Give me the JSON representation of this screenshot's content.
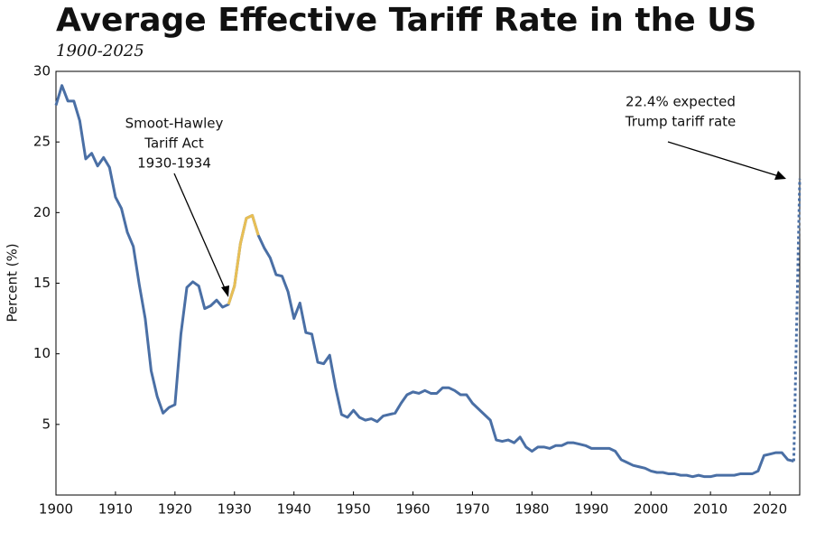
{
  "chart_data": {
    "type": "line",
    "title": "Average Effective Tariff Rate in the US",
    "subtitle": "1900-2025",
    "y_label": "Percent (%)",
    "x": [
      1900,
      1901,
      1902,
      1903,
      1904,
      1905,
      1906,
      1907,
      1908,
      1909,
      1910,
      1911,
      1912,
      1913,
      1914,
      1915,
      1916,
      1917,
      1918,
      1919,
      1920,
      1921,
      1922,
      1923,
      1924,
      1925,
      1926,
      1927,
      1928,
      1929,
      1930,
      1931,
      1932,
      1933,
      1934,
      1935,
      1936,
      1937,
      1938,
      1939,
      1940,
      1941,
      1942,
      1943,
      1944,
      1945,
      1946,
      1947,
      1948,
      1949,
      1950,
      1951,
      1952,
      1953,
      1954,
      1955,
      1956,
      1957,
      1958,
      1959,
      1960,
      1961,
      1962,
      1963,
      1964,
      1965,
      1966,
      1967,
      1968,
      1969,
      1970,
      1971,
      1972,
      1973,
      1974,
      1975,
      1976,
      1977,
      1978,
      1979,
      1980,
      1981,
      1982,
      1983,
      1984,
      1985,
      1986,
      1987,
      1988,
      1989,
      1990,
      1991,
      1992,
      1993,
      1994,
      1995,
      1996,
      1997,
      1998,
      1999,
      2000,
      2001,
      2002,
      2003,
      2004,
      2005,
      2006,
      2007,
      2008,
      2009,
      2010,
      2011,
      2012,
      2013,
      2014,
      2015,
      2016,
      2017,
      2018,
      2019,
      2020,
      2021,
      2022,
      2023,
      2024
    ],
    "series": [
      {
        "color": "#4a6fa5",
        "values": [
          27.6,
          29.0,
          27.9,
          27.9,
          26.5,
          23.8,
          24.2,
          23.3,
          23.9,
          23.2,
          21.1,
          20.3,
          18.6,
          17.6,
          14.9,
          12.5,
          8.8,
          7.0,
          5.8,
          6.2,
          6.4,
          11.4,
          14.7,
          15.1,
          14.8,
          13.2,
          13.4,
          13.8,
          13.3,
          13.5,
          14.8,
          17.8,
          19.6,
          19.8,
          18.4,
          17.5,
          16.8,
          15.6,
          15.5,
          14.4,
          12.5,
          13.6,
          11.5,
          11.4,
          9.4,
          9.3,
          9.9,
          7.6,
          5.7,
          5.5,
          6.0,
          5.5,
          5.3,
          5.4,
          5.2,
          5.6,
          5.7,
          5.8,
          6.5,
          7.1,
          7.3,
          7.2,
          7.4,
          7.2,
          7.2,
          7.6,
          7.6,
          7.4,
          7.1,
          7.1,
          6.5,
          6.1,
          5.7,
          5.3,
          3.9,
          3.8,
          3.9,
          3.7,
          4.1,
          3.4,
          3.1,
          3.4,
          3.4,
          3.3,
          3.5,
          3.5,
          3.7,
          3.7,
          3.6,
          3.5,
          3.3,
          3.3,
          3.3,
          3.3,
          3.1,
          2.5,
          2.3,
          2.1,
          2.0,
          1.9,
          1.7,
          1.6,
          1.6,
          1.5,
          1.5,
          1.4,
          1.4,
          1.3,
          1.4,
          1.3,
          1.3,
          1.4,
          1.4,
          1.4,
          1.4,
          1.5,
          1.5,
          1.5,
          1.7,
          2.8,
          2.9,
          3.0,
          3.0,
          2.5,
          2.4
        ]
      }
    ],
    "highlight": {
      "x_range": [
        1929,
        1934
      ],
      "color": "#e8bf55"
    },
    "projection": {
      "x": 2025,
      "value": 22.4,
      "style": "dotted"
    },
    "annotations": [
      {
        "lines": [
          "Smoot-Hawley",
          "Tariff Act",
          "1930-1934"
        ]
      },
      {
        "lines": [
          "22.4% expected",
          "Trump tariff rate"
        ]
      }
    ],
    "xlim": [
      1900,
      2025
    ],
    "xticks": [
      1900,
      1910,
      1920,
      1930,
      1940,
      1950,
      1960,
      1970,
      1980,
      1990,
      2000,
      2010,
      2020
    ],
    "ylim": [
      0,
      30
    ],
    "yticks": [
      5,
      10,
      15,
      20,
      25,
      30
    ],
    "grid": false
  }
}
